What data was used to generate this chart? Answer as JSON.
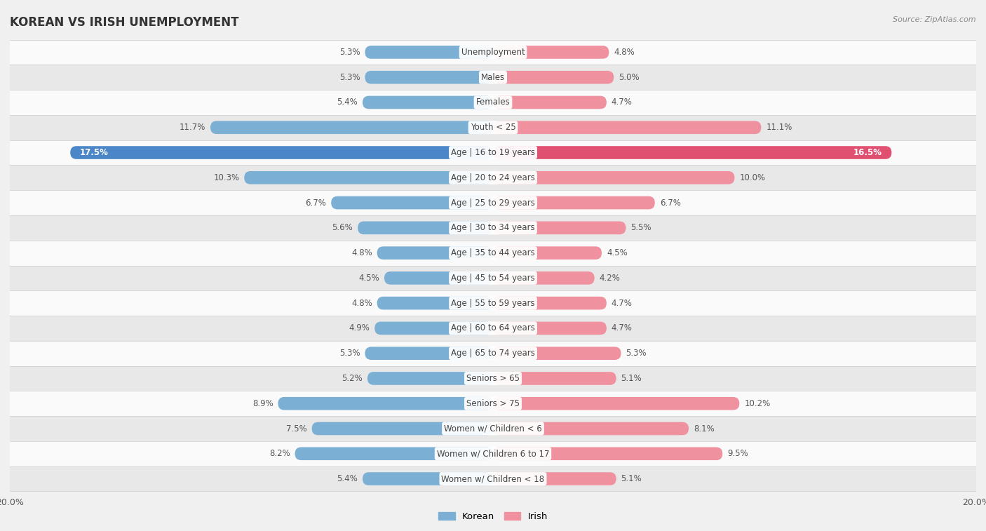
{
  "title": "KOREAN VS IRISH UNEMPLOYMENT",
  "source": "Source: ZipAtlas.com",
  "categories": [
    "Unemployment",
    "Males",
    "Females",
    "Youth < 25",
    "Age | 16 to 19 years",
    "Age | 20 to 24 years",
    "Age | 25 to 29 years",
    "Age | 30 to 34 years",
    "Age | 35 to 44 years",
    "Age | 45 to 54 years",
    "Age | 55 to 59 years",
    "Age | 60 to 64 years",
    "Age | 65 to 74 years",
    "Seniors > 65",
    "Seniors > 75",
    "Women w/ Children < 6",
    "Women w/ Children 6 to 17",
    "Women w/ Children < 18"
  ],
  "korean": [
    5.3,
    5.3,
    5.4,
    11.7,
    17.5,
    10.3,
    6.7,
    5.6,
    4.8,
    4.5,
    4.8,
    4.9,
    5.3,
    5.2,
    8.9,
    7.5,
    8.2,
    5.4
  ],
  "irish": [
    4.8,
    5.0,
    4.7,
    11.1,
    16.5,
    10.0,
    6.7,
    5.5,
    4.5,
    4.2,
    4.7,
    4.7,
    5.3,
    5.1,
    10.2,
    8.1,
    9.5,
    5.1
  ],
  "korean_color": "#7bafd4",
  "irish_color": "#f0919f",
  "korean_highlight_color": "#4a86c8",
  "irish_highlight_color": "#e05070",
  "max_val": 20.0,
  "bg_color": "#f0f0f0",
  "row_bg_light": "#fafafa",
  "row_bg_dark": "#e8e8e8",
  "label_fontsize": 8.5,
  "value_fontsize": 8.5,
  "title_fontsize": 12,
  "legend_korean": "Korean",
  "legend_irish": "Irish"
}
